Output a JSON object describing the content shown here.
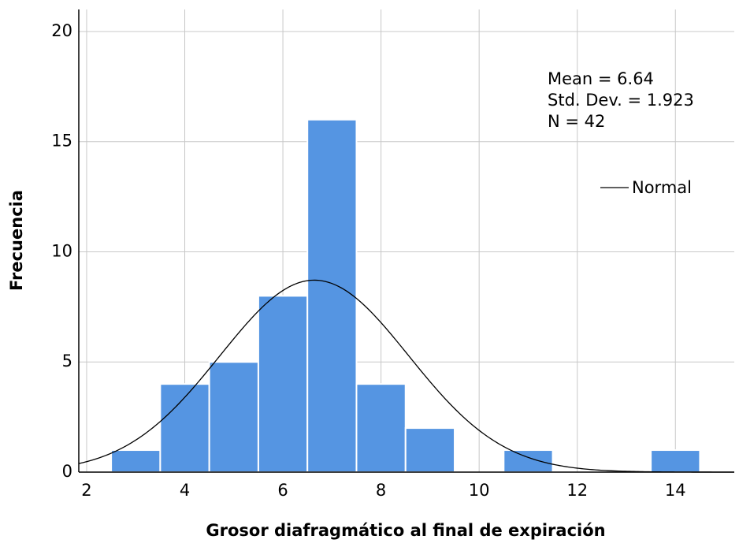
{
  "chart_data": {
    "type": "histogram",
    "x_label": "Grosor diafragmático al final de expiración",
    "y_label": "Frecuencia",
    "bins": [
      2.5,
      3.5,
      4.5,
      5.5,
      6.5,
      7.5,
      8.5,
      9.5,
      10.5,
      11.5,
      12.5,
      13.5,
      14.5
    ],
    "values": [
      1,
      4,
      5,
      8,
      16,
      4,
      2,
      0,
      1,
      0,
      0,
      1
    ],
    "color": "#5595e2",
    "xlim": [
      1.84,
      15.2
    ],
    "xticks": [
      2,
      4,
      6,
      8,
      10,
      12,
      14
    ],
    "ylim": [
      0,
      21
    ],
    "yticks": [
      0,
      5,
      10,
      15,
      20
    ],
    "grid": true,
    "stats": [
      "Mean = 6.64",
      "Std. Dev. = 1.923",
      "N = 42"
    ],
    "normal": {
      "name": "Normal",
      "mean": 6.64,
      "sd": 1.923,
      "n": 42,
      "color": "#000000"
    }
  }
}
